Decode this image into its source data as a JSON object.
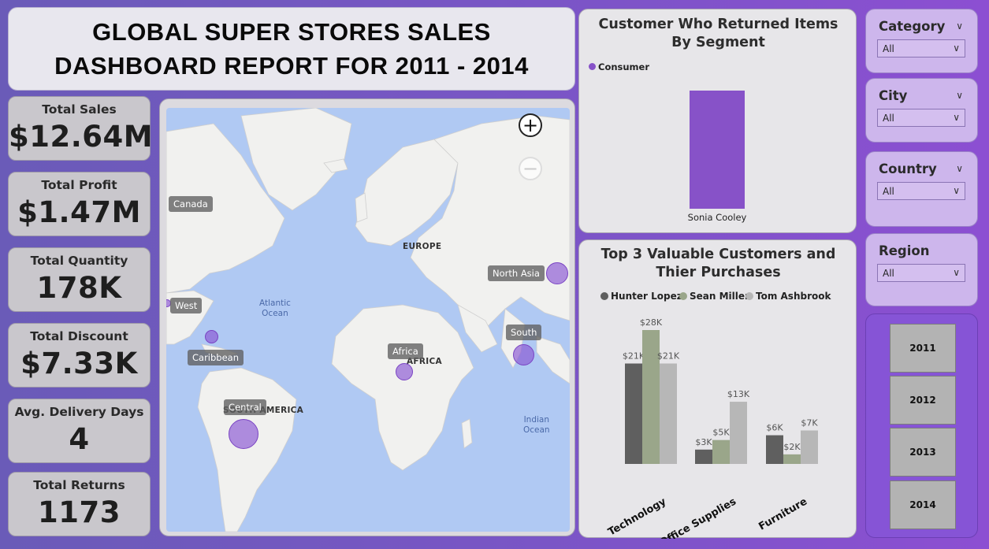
{
  "title": {
    "line1": "GLOBAL SUPER STORES SALES",
    "line2": "DASHBOARD REPORT FOR 2011 - 2014"
  },
  "kpis": [
    {
      "label": "Total Sales",
      "value": "$12.64M"
    },
    {
      "label": "Total Profit",
      "value": "$1.47M"
    },
    {
      "label": "Total Quantity",
      "value": "178K"
    },
    {
      "label": "Total Discount",
      "value": "$7.33K"
    },
    {
      "label": "Avg. Delivery Days",
      "value": "4"
    },
    {
      "label": "Total Returns",
      "value": "1173"
    }
  ],
  "map": {
    "region_labels": [
      "Canada",
      "West",
      "Caribbean",
      "Central",
      "Africa",
      "North Asia",
      "South"
    ],
    "continent_labels": [
      "EUROPE",
      "AFRICA",
      "SOUTH AMERICA"
    ],
    "ocean_labels": [
      {
        "line1": "Atlantic",
        "line2": "Ocean"
      },
      {
        "line1": "Indian",
        "line2": "Ocean"
      }
    ],
    "zoom_in_icon": "plus-icon",
    "zoom_out_icon": "minus-icon",
    "bubble_color": "#8955d3"
  },
  "chart_data": [
    {
      "type": "bar",
      "title": "Customer Who Returned Items By Segment",
      "legend": [
        "Consumer"
      ],
      "legend_position": "top-left",
      "categories": [
        "Sonia Cooley"
      ],
      "series": [
        {
          "name": "Consumer",
          "values": [
            1
          ],
          "color": "#8752c8"
        }
      ],
      "y_axis_visible": false
    },
    {
      "type": "bar",
      "title": "Top 3 Valuable Customers and Thier Purchases",
      "legend_position": "top-center",
      "categories": [
        "Technology",
        "Office Supplies",
        "Furniture"
      ],
      "series": [
        {
          "name": "Hunter Lopez",
          "values": [
            21,
            3,
            6
          ],
          "labels": [
            "$21K",
            "$3K",
            "$6K"
          ],
          "color": "#5f5f5f"
        },
        {
          "name": "Sean Miller",
          "values": [
            28,
            5,
            2
          ],
          "labels": [
            "$28K",
            "$5K",
            "$2K"
          ],
          "color": "#9aa68a"
        },
        {
          "name": "Tom Ashbrook",
          "values": [
            21,
            13,
            7
          ],
          "labels": [
            "$21K",
            "$13K",
            "$7K"
          ],
          "color": "#b7b7b7"
        }
      ],
      "ylim": [
        0,
        28
      ],
      "y_axis_visible": false
    }
  ],
  "slicers": [
    {
      "title": "Category",
      "value": "All"
    },
    {
      "title": "City",
      "value": "All"
    },
    {
      "title": "Country",
      "value": "All"
    },
    {
      "title": "Region",
      "value": "All"
    }
  ],
  "years": [
    "2011",
    "2012",
    "2013",
    "2014"
  ],
  "colors": {
    "accent": "#8654d6",
    "panel": "#e7e6e9",
    "kpi_bg": "#c9c7cc",
    "slicer_bg": "#cdb6ec"
  }
}
